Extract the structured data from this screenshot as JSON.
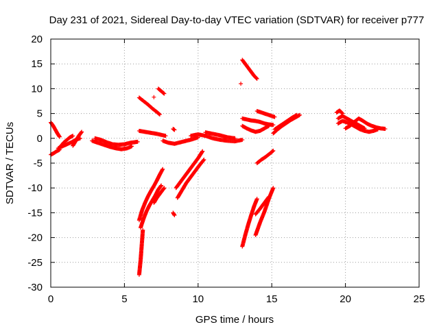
{
  "chart_data": {
    "type": "scatter",
    "title": "Day 231 of 2021, Sidereal Day-to-day VTEC variation (SDTVAR) for receiver p777",
    "xlabel": "GPS time / hours",
    "ylabel": "SDTVAR / TECUs",
    "xlim": [
      0,
      25
    ],
    "ylim": [
      -30,
      20
    ],
    "xticks": [
      0,
      5,
      10,
      15,
      20,
      25
    ],
    "yticks": [
      -30,
      -25,
      -20,
      -15,
      -10,
      -5,
      0,
      5,
      10,
      15,
      20
    ],
    "grid": true,
    "marker": "plus",
    "color": "#ff0000",
    "segments": [
      {
        "x": [
          0.0,
          0.15,
          0.3,
          0.45,
          0.6
        ],
        "y": [
          3.2,
          2.6,
          1.8,
          1.0,
          0.3
        ]
      },
      {
        "x": [
          0.0,
          0.2,
          0.4,
          0.6
        ],
        "y": [
          -3.3,
          -3.0,
          -2.6,
          -2.3
        ]
      },
      {
        "x": [
          0.7,
          0.9,
          1.1,
          1.3,
          1.5
        ],
        "y": [
          -1.5,
          -0.8,
          -0.3,
          0.2,
          0.5
        ]
      },
      {
        "x": [
          0.5,
          0.8,
          1.1,
          1.4,
          1.7,
          2.0
        ],
        "y": [
          -2.0,
          -1.6,
          -1.2,
          -0.8,
          -0.3,
          0.0
        ]
      },
      {
        "x": [
          1.5,
          1.7,
          1.9,
          2.1
        ],
        "y": [
          -1.5,
          -0.5,
          0.5,
          1.3
        ]
      },
      {
        "x": [
          2.8,
          3.2,
          3.6,
          4.0,
          4.4,
          4.8,
          5.2,
          5.5
        ],
        "y": [
          -0.5,
          -0.9,
          -1.3,
          -1.7,
          -2.0,
          -2.2,
          -2.0,
          -1.6
        ]
      },
      {
        "x": [
          3.0,
          3.4,
          3.8,
          4.2,
          4.6,
          5.0,
          5.4,
          5.9
        ],
        "y": [
          0.0,
          -0.3,
          -0.8,
          -1.2,
          -1.3,
          -1.2,
          -0.9,
          -0.7
        ]
      },
      {
        "x": [
          6.0,
          6.4,
          6.8,
          7.2,
          7.5,
          7.8
        ],
        "y": [
          1.5,
          1.3,
          1.1,
          0.9,
          0.7,
          0.5
        ]
      },
      {
        "x": [
          6.0,
          6.3,
          6.6,
          6.9,
          7.2,
          7.4
        ],
        "y": [
          8.2,
          7.5,
          6.8,
          6.0,
          5.3,
          4.8
        ]
      },
      {
        "x": [
          7.3,
          7.5,
          7.7
        ],
        "y": [
          10.0,
          9.5,
          9.0
        ]
      },
      {
        "x": [
          7.0
        ],
        "y": [
          8.3
        ]
      },
      {
        "x": [
          8.3,
          8.4
        ],
        "y": [
          1.9,
          1.7
        ]
      },
      {
        "x": [
          7.6,
          8.0,
          8.4,
          8.8,
          9.2,
          9.6,
          10.0
        ],
        "y": [
          -0.5,
          -0.9,
          -1.1,
          -0.8,
          -0.5,
          -0.2,
          0.2
        ]
      },
      {
        "x": [
          9.5,
          10.0,
          10.5,
          11.0,
          11.5,
          12.0,
          12.5,
          13.0
        ],
        "y": [
          0.5,
          0.8,
          0.5,
          0.0,
          -0.3,
          -0.5,
          -0.6,
          -0.3
        ]
      },
      {
        "x": [
          10.5,
          11.0,
          11.5,
          12.0,
          12.5
        ],
        "y": [
          1.2,
          0.9,
          0.6,
          0.2,
          0.0
        ]
      },
      {
        "x": [
          6.0,
          6.2,
          6.4,
          6.6,
          6.8,
          7.0,
          7.2,
          7.4,
          7.6
        ],
        "y": [
          -16.5,
          -14.5,
          -13.0,
          -11.7,
          -10.6,
          -9.6,
          -8.5,
          -7.3,
          -6.2
        ]
      },
      {
        "x": [
          6.1,
          6.3,
          6.5,
          6.7,
          6.9,
          7.1,
          7.3,
          7.5
        ],
        "y": [
          -18.0,
          -16.2,
          -14.7,
          -13.5,
          -12.5,
          -11.5,
          -10.3,
          -9.5
        ]
      },
      {
        "x": [
          6.0,
          6.05,
          6.1,
          6.15,
          6.2,
          6.25
        ],
        "y": [
          -27.5,
          -26.0,
          -24.5,
          -22.5,
          -20.5,
          -18.5
        ]
      },
      {
        "x": [
          7.0,
          7.2,
          7.4,
          7.6,
          7.7
        ],
        "y": [
          -13.0,
          -12.0,
          -11.2,
          -10.4,
          -10.0
        ]
      },
      {
        "x": [
          8.3,
          8.4
        ],
        "y": [
          -15.0,
          -15.5
        ]
      },
      {
        "x": [
          8.5,
          8.8,
          9.1,
          9.4,
          9.7,
          10.0,
          10.3
        ],
        "y": [
          -10.0,
          -8.8,
          -7.6,
          -6.4,
          -5.2,
          -4.0,
          -2.6
        ]
      },
      {
        "x": [
          8.6,
          8.9,
          9.2,
          9.5,
          9.8,
          10.1,
          10.4
        ],
        "y": [
          -12.0,
          -10.5,
          -9.0,
          -7.8,
          -6.6,
          -5.4,
          -4.3
        ]
      },
      {
        "x": [
          13.0,
          13.2,
          13.4,
          13.6,
          13.8,
          14.0
        ],
        "y": [
          15.8,
          15.0,
          14.2,
          13.4,
          12.6,
          12.0
        ]
      },
      {
        "x": [
          12.9
        ],
        "y": [
          11.0
        ]
      },
      {
        "x": [
          13.0,
          13.3,
          13.6,
          13.9,
          14.2,
          14.5,
          14.8,
          15.1
        ],
        "y": [
          4.0,
          3.8,
          3.6,
          3.5,
          3.3,
          3.0,
          2.8,
          2.7
        ]
      },
      {
        "x": [
          13.0,
          13.3,
          13.6,
          13.9,
          14.2,
          14.5,
          14.8
        ],
        "y": [
          2.5,
          2.0,
          1.6,
          1.3,
          1.5,
          2.0,
          2.5
        ]
      },
      {
        "x": [
          14.0,
          14.3,
          14.6,
          14.9,
          15.2
        ],
        "y": [
          5.5,
          5.2,
          4.9,
          4.6,
          4.3
        ]
      },
      {
        "x": [
          14.0,
          14.3,
          14.6,
          14.9,
          15.1
        ],
        "y": [
          -5.0,
          -4.3,
          -3.7,
          -3.0,
          -2.5
        ]
      },
      {
        "x": [
          13.0,
          13.2,
          13.4,
          13.6,
          13.8,
          14.0
        ],
        "y": [
          -21.8,
          -19.5,
          -17.4,
          -15.5,
          -13.7,
          -12.2
        ]
      },
      {
        "x": [
          13.9,
          14.2,
          14.5,
          14.8,
          15.1
        ],
        "y": [
          -19.5,
          -17.0,
          -14.8,
          -12.2,
          -10.0
        ]
      },
      {
        "x": [
          13.9,
          14.2,
          14.5,
          14.8
        ],
        "y": [
          -15.3,
          -14.2,
          -13.0,
          -11.8
        ]
      },
      {
        "x": [
          15.1,
          15.4,
          15.7,
          16.0,
          16.3,
          16.6,
          16.9
        ],
        "y": [
          1.0,
          1.8,
          2.5,
          3.1,
          3.7,
          4.2,
          4.7
        ]
      },
      {
        "x": [
          15.2,
          15.5,
          15.8,
          16.1,
          16.4,
          16.7
        ],
        "y": [
          1.8,
          2.4,
          3.0,
          3.6,
          4.2,
          4.7
        ]
      },
      {
        "x": [
          19.5,
          19.8,
          20.1,
          20.4,
          20.7,
          21.0,
          21.3,
          21.6,
          21.9,
          22.2
        ],
        "y": [
          3.0,
          3.5,
          3.2,
          2.8,
          2.3,
          1.8,
          1.5,
          1.3,
          1.5,
          1.8
        ]
      },
      {
        "x": [
          19.5,
          19.8,
          20.1,
          20.4,
          20.7,
          21.0,
          21.3
        ],
        "y": [
          4.0,
          4.5,
          4.0,
          3.5,
          3.0,
          2.5,
          2.0
        ]
      },
      {
        "x": [
          20.0,
          20.3,
          20.6,
          20.9,
          21.2,
          21.5,
          21.8,
          22.1,
          22.4,
          22.7
        ],
        "y": [
          2.0,
          2.5,
          3.3,
          4.0,
          3.5,
          2.9,
          2.5,
          2.2,
          2.0,
          1.9
        ]
      },
      {
        "x": [
          19.4,
          19.6,
          19.8
        ],
        "y": [
          5.2,
          5.6,
          5.0
        ]
      }
    ]
  }
}
